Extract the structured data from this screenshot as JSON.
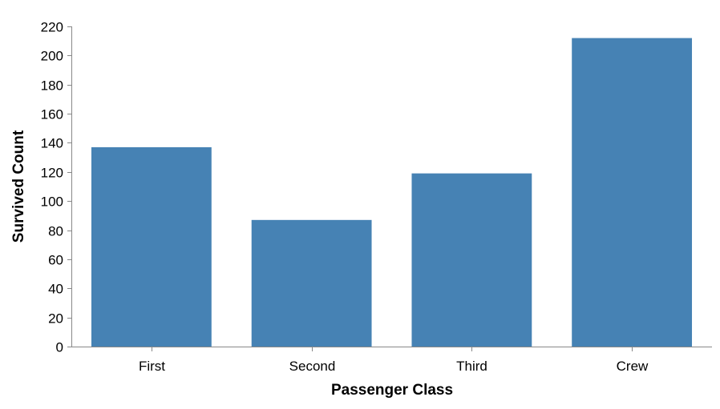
{
  "chart_data": {
    "type": "bar",
    "categories": [
      "First",
      "Second",
      "Third",
      "Crew"
    ],
    "values": [
      137,
      87,
      119,
      212
    ],
    "title": "",
    "xlabel": "Passenger Class",
    "ylabel": "Survived Count",
    "ylim": [
      0,
      220
    ],
    "yticks": [
      0,
      20,
      40,
      60,
      80,
      100,
      120,
      140,
      160,
      180,
      200,
      220
    ],
    "grid": false,
    "bar_color": "#4682b4",
    "axis_color": "#888888"
  }
}
